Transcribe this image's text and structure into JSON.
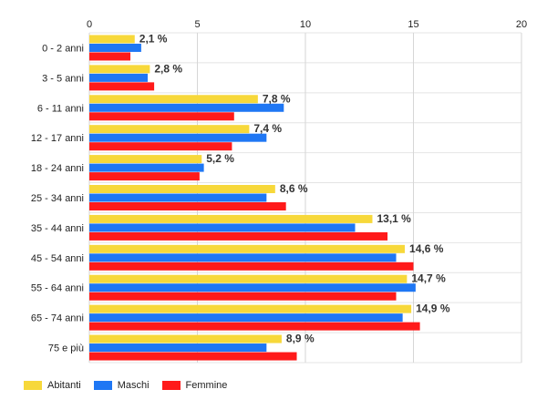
{
  "chart_data": {
    "type": "bar",
    "orientation": "horizontal",
    "categories": [
      "0 - 2 anni",
      "3 - 5 anni",
      "6 - 11 anni",
      "12 - 17 anni",
      "18 - 24 anni",
      "25 - 34 anni",
      "35 - 44 anni",
      "45 - 54 anni",
      "55 - 64 anni",
      "65 - 74 anni",
      "75 e più"
    ],
    "series": [
      {
        "name": "Abitanti",
        "color": "#f7d83a",
        "values": [
          2.1,
          2.8,
          7.8,
          7.4,
          5.2,
          8.6,
          13.1,
          14.6,
          14.7,
          14.9,
          8.9
        ]
      },
      {
        "name": "Maschi",
        "color": "#1f77f4",
        "values": [
          2.4,
          2.7,
          9.0,
          8.2,
          5.3,
          8.2,
          12.3,
          14.2,
          15.1,
          14.5,
          8.2
        ]
      },
      {
        "name": "Femmine",
        "color": "#ff1a1a",
        "values": [
          1.9,
          3.0,
          6.7,
          6.6,
          5.1,
          9.1,
          13.8,
          15.0,
          14.2,
          15.3,
          9.6
        ]
      }
    ],
    "data_labels": [
      "2,1 %",
      "2,8 %",
      "7,8 %",
      "7,4 %",
      "5,2 %",
      "8,6 %",
      "13,1 %",
      "14,6 %",
      "14,7 %",
      "14,9 %",
      "8,9 %"
    ],
    "xlim": [
      0,
      20
    ],
    "xticks": [
      0,
      5,
      10,
      15,
      20
    ],
    "xtick_labels": [
      "0",
      "5",
      "10",
      "15",
      "20"
    ],
    "axis_position": "top",
    "grid": true,
    "legend_position": "bottom-left"
  },
  "legend": [
    {
      "label": "Abitanti",
      "color": "#f7d83a"
    },
    {
      "label": "Maschi",
      "color": "#1f77f4"
    },
    {
      "label": "Femmine",
      "color": "#ff1a1a"
    }
  ]
}
